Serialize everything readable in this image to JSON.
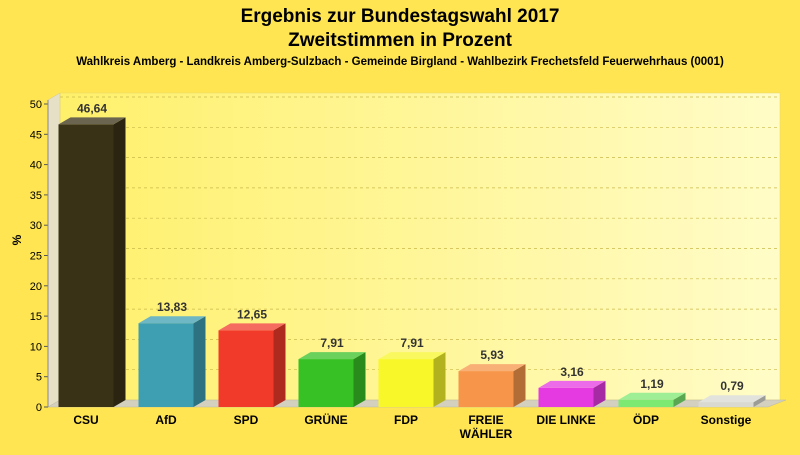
{
  "chart_data": {
    "type": "bar",
    "title": "Ergebnis zur Bundestagswahl 2017",
    "subtitle": "Zweitstimmen in Prozent",
    "caption": "Wahlkreis Amberg - Landkreis Amberg-Sulzbach - Gemeinde Birgland - Wahlbezirk Frechetsfeld Feuerwehrhaus (0001)",
    "ylabel": "%",
    "xlabel": "",
    "ylim": [
      0,
      50
    ],
    "yticks": [
      0,
      5,
      10,
      15,
      20,
      25,
      30,
      35,
      40,
      45,
      50
    ],
    "grid": true,
    "legend": "none",
    "categories": [
      [
        "CSU"
      ],
      [
        "AfD"
      ],
      [
        "SPD"
      ],
      [
        "GRÜNE"
      ],
      [
        "FDP"
      ],
      [
        "FREIE",
        "WÄHLER"
      ],
      [
        "DIE LINKE"
      ],
      [
        "ÖDP"
      ],
      [
        "Sonstige"
      ]
    ],
    "values": [
      46.64,
      13.83,
      12.65,
      7.91,
      7.91,
      5.93,
      3.16,
      1.19,
      0.79
    ],
    "value_labels": [
      "46,64",
      "13,83",
      "12,65",
      "7,91",
      "7,91",
      "5,93",
      "3,16",
      "1,19",
      "0,79"
    ],
    "colors": [
      "#3a3216",
      "#3f9fb2",
      "#f23a2a",
      "#37c125",
      "#f7f72a",
      "#f7964a",
      "#e53ae2",
      "#7de872",
      "#d9d9d2"
    ]
  }
}
